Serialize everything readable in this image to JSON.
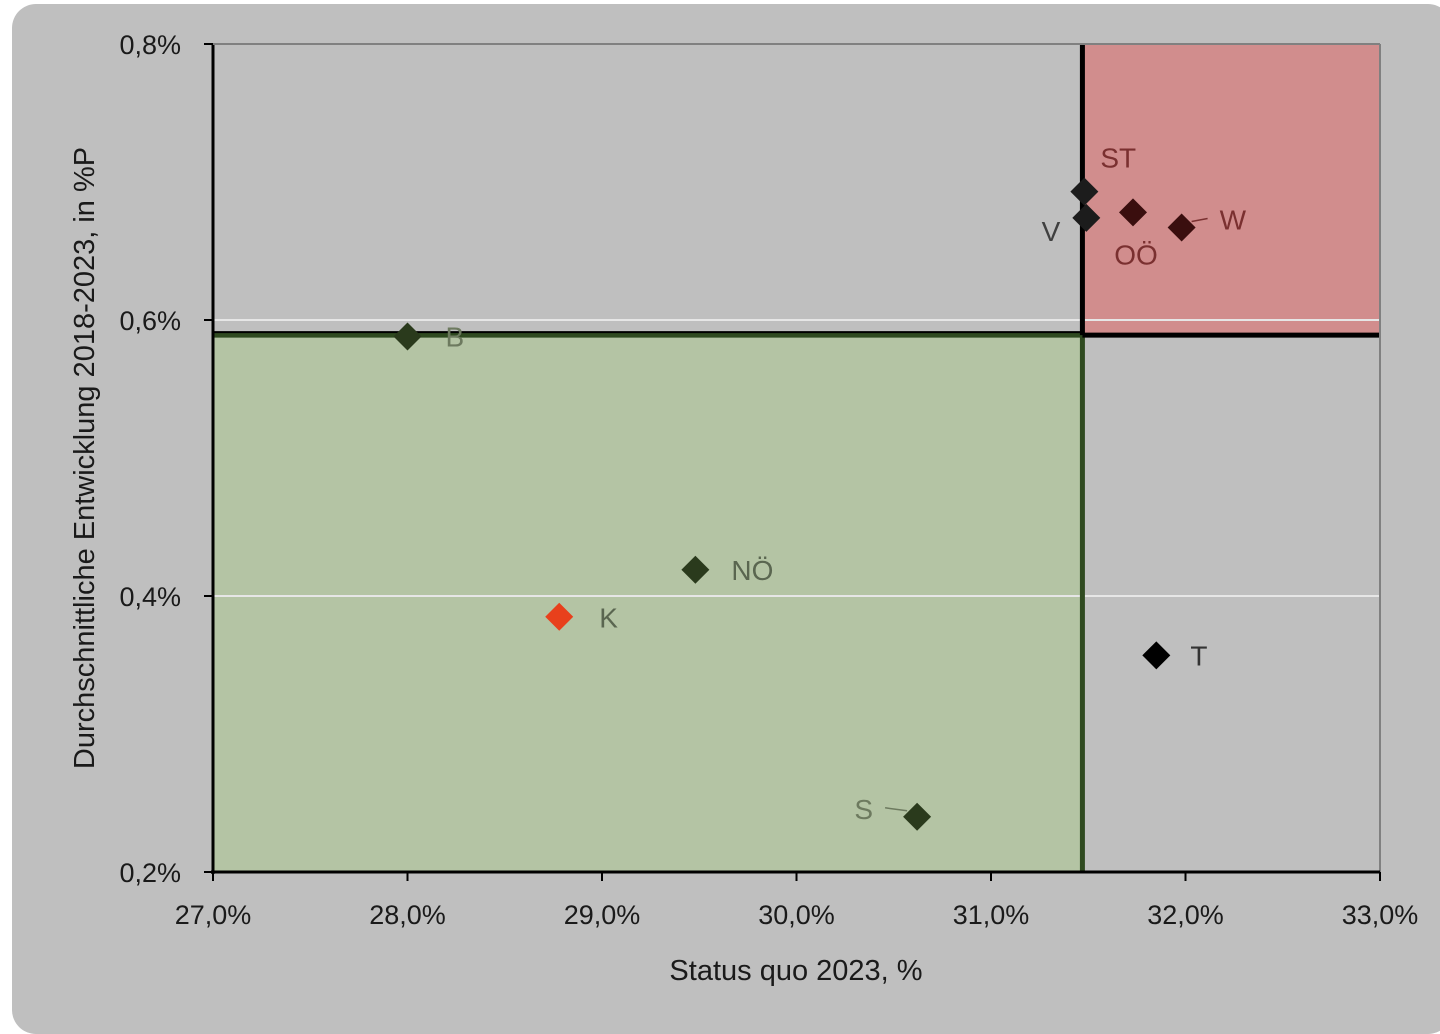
{
  "chart_data": {
    "type": "scatter",
    "title": "",
    "xlabel": "Status quo 2023, %",
    "ylabel": "Durchschnittliche Entwicklung 2018-2023, in %P",
    "xlim": [
      27.0,
      33.0
    ],
    "ylim": [
      0.2,
      0.8
    ],
    "x_ticks": [
      {
        "value": 27.0,
        "label": "27,0%"
      },
      {
        "value": 28.0,
        "label": "28,0%"
      },
      {
        "value": 29.0,
        "label": "29,0%"
      },
      {
        "value": 30.0,
        "label": "30,0%"
      },
      {
        "value": 31.0,
        "label": "31,0%"
      },
      {
        "value": 32.0,
        "label": "32,0%"
      },
      {
        "value": 33.0,
        "label": "33,0%"
      }
    ],
    "y_ticks": [
      {
        "value": 0.2,
        "label": "0,2%"
      },
      {
        "value": 0.4,
        "label": "0,4%"
      },
      {
        "value": 0.6,
        "label": "0,6%"
      },
      {
        "value": 0.8,
        "label": "0,8%"
      }
    ],
    "grid": "horizontal",
    "reference_lines": {
      "x": 31.47,
      "y": 0.589
    },
    "regions": [
      {
        "name": "below-below",
        "x": [
          27.0,
          31.47
        ],
        "y": [
          0.2,
          0.589
        ],
        "color": "#b4c4a4",
        "edge": "#2f4a20"
      },
      {
        "name": "above-above",
        "x": [
          31.47,
          33.0
        ],
        "y": [
          0.589,
          0.8
        ],
        "color": "#d18d8d",
        "edge": "#000000"
      }
    ],
    "points": [
      {
        "label": "B",
        "x": 28.0,
        "y": 0.588,
        "color": "#2a3a1c",
        "label_color": "#6d7a5f",
        "label_side": "right"
      },
      {
        "label": "K",
        "x": 28.78,
        "y": 0.385,
        "color": "#e8401c",
        "label_color": "#5a6650",
        "label_side": "right"
      },
      {
        "label": "NÖ",
        "x": 29.48,
        "y": 0.419,
        "color": "#2a3a1c",
        "label_color": "#5a6650",
        "label_side": "right"
      },
      {
        "label": "S",
        "x": 30.62,
        "y": 0.24,
        "color": "#2a3a1c",
        "label_color": "#6d7a5f",
        "label_side": "left"
      },
      {
        "label": "ST",
        "x": 31.48,
        "y": 0.693,
        "color": "#1c1c1c",
        "label_color": "#7a3030",
        "label_side": "top-right"
      },
      {
        "label": "V",
        "x": 31.49,
        "y": 0.674,
        "color": "#1c1c1c",
        "label_color": "#404040",
        "label_side": "left"
      },
      {
        "label": "OÖ",
        "x": 31.73,
        "y": 0.678,
        "color": "#3a0e0e",
        "label_color": "#7a3030",
        "label_side": "bottom"
      },
      {
        "label": "W",
        "x": 31.98,
        "y": 0.667,
        "color": "#3a0e0e",
        "label_color": "#7a3030",
        "label_side": "right"
      },
      {
        "label": "T",
        "x": 31.85,
        "y": 0.357,
        "color": "#000000",
        "label_color": "#333333",
        "label_side": "right"
      }
    ]
  }
}
